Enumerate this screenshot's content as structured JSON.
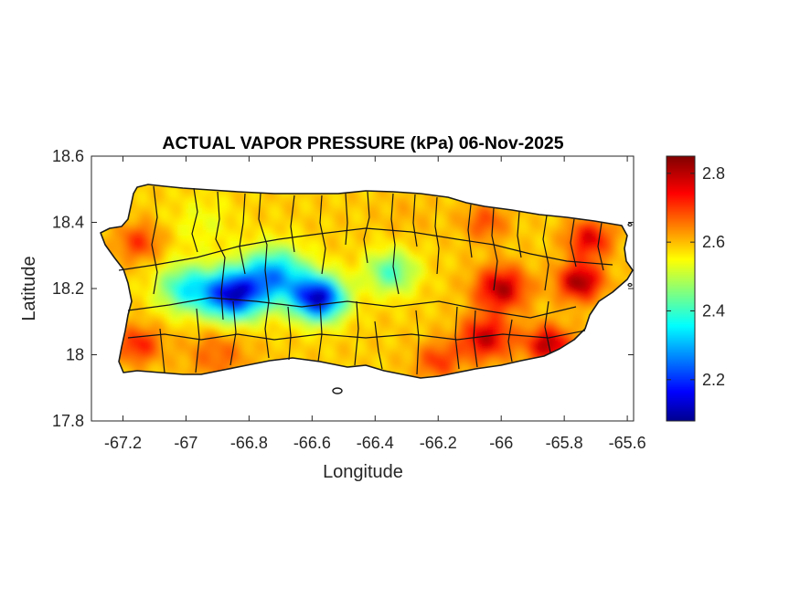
{
  "figure": {
    "title": "ACTUAL VAPOR PRESSURE (kPa) 06-Nov-2025",
    "xlabel": "Longitude",
    "ylabel": "Latitude"
  },
  "axes": {
    "xlim": [
      -67.3,
      -65.58
    ],
    "ylim": [
      17.8,
      18.6
    ],
    "xticks": [
      -67.2,
      -67,
      -66.8,
      -66.6,
      -66.4,
      -66.2,
      -66,
      -65.8,
      -65.6
    ],
    "xtick_labels": [
      "-67.2",
      "-67",
      "-66.8",
      "-66.6",
      "-66.4",
      "-66.2",
      "-66",
      "-65.8",
      "-65.6"
    ],
    "yticks": [
      17.8,
      18,
      18.2,
      18.4,
      18.6
    ],
    "ytick_labels": [
      "17.8",
      "18",
      "18.2",
      "18.4",
      "18.6"
    ]
  },
  "colorbar": {
    "colormap": "jet",
    "range": [
      2.08,
      2.85
    ],
    "ticks": [
      2.2,
      2.4,
      2.6,
      2.8
    ],
    "tick_labels": [
      "2.2",
      "2.4",
      "2.6",
      "2.8"
    ]
  },
  "map_field": {
    "units": "kPa",
    "region": "Puerto Rico",
    "base_value": 2.6,
    "features": [
      {
        "lon": -66.85,
        "lat": 18.18,
        "value": 2.15,
        "spread": 0.09
      },
      {
        "lon": -66.58,
        "lat": 18.17,
        "value": 2.12,
        "spread": 0.08
      },
      {
        "lon": -66.72,
        "lat": 18.24,
        "value": 2.3,
        "spread": 0.1
      },
      {
        "lon": -67.0,
        "lat": 18.2,
        "value": 2.38,
        "spread": 0.09
      },
      {
        "lon": -66.35,
        "lat": 18.25,
        "value": 2.42,
        "spread": 0.08
      },
      {
        "lon": -66.95,
        "lat": 18.4,
        "value": 2.55,
        "spread": 0.1
      },
      {
        "lon": -67.15,
        "lat": 18.34,
        "value": 2.72,
        "spread": 0.07
      },
      {
        "lon": -67.15,
        "lat": 18.03,
        "value": 2.74,
        "spread": 0.07
      },
      {
        "lon": -66.9,
        "lat": 18.0,
        "value": 2.68,
        "spread": 0.1
      },
      {
        "lon": -66.05,
        "lat": 18.05,
        "value": 2.8,
        "spread": 0.08
      },
      {
        "lon": -65.85,
        "lat": 18.03,
        "value": 2.82,
        "spread": 0.07
      },
      {
        "lon": -66.0,
        "lat": 18.2,
        "value": 2.82,
        "spread": 0.08
      },
      {
        "lon": -65.75,
        "lat": 18.22,
        "value": 2.84,
        "spread": 0.07
      },
      {
        "lon": -65.72,
        "lat": 18.35,
        "value": 2.78,
        "spread": 0.07
      },
      {
        "lon": -66.05,
        "lat": 18.4,
        "value": 2.7,
        "spread": 0.07
      },
      {
        "lon": -66.3,
        "lat": 18.42,
        "value": 2.62,
        "spread": 0.09
      },
      {
        "lon": -66.2,
        "lat": 17.98,
        "value": 2.72,
        "spread": 0.07
      }
    ]
  }
}
